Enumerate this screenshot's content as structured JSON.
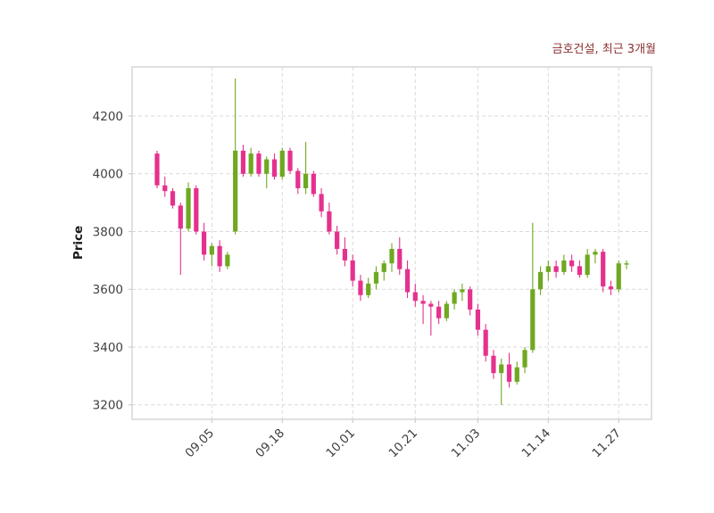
{
  "chart_data": {
    "type": "candlestick",
    "title": "금호건설, 최근 3개월",
    "ylabel": "Price",
    "xlabel": "",
    "ylim": [
      3150,
      4370
    ],
    "yticks": [
      3200,
      3400,
      3600,
      3800,
      4000,
      4200
    ],
    "xtick_labels": [
      "09.05",
      "09.18",
      "10.01",
      "10.21",
      "11.03",
      "11.14",
      "11.27"
    ],
    "xtick_indices": [
      7,
      16,
      25,
      33,
      41,
      50,
      59
    ],
    "grid": true,
    "grid_style": "dashed",
    "legend": "none",
    "colors": {
      "up": "#6fa821",
      "down": "#e5318e",
      "grid": "#d9d9d9",
      "spine": "#cccccc",
      "tick_label": "#404040",
      "title": "#8b2f2f",
      "ylabel": "#1a1a1a",
      "plot_background": "#ffffff",
      "figure_background": "#ffffff"
    },
    "candle_columns": [
      "open",
      "high",
      "low",
      "close"
    ],
    "candles": [
      [
        4070,
        4080,
        3950,
        3960
      ],
      [
        3960,
        3990,
        3920,
        3940
      ],
      [
        3940,
        3950,
        3880,
        3890
      ],
      [
        3890,
        3900,
        3650,
        3810
      ],
      [
        3810,
        3970,
        3800,
        3950
      ],
      [
        3950,
        3960,
        3790,
        3800
      ],
      [
        3800,
        3830,
        3700,
        3720
      ],
      [
        3720,
        3760,
        3680,
        3750
      ],
      [
        3750,
        3770,
        3660,
        3680
      ],
      [
        3680,
        3730,
        3670,
        3720
      ],
      [
        3800,
        4330,
        3790,
        4080
      ],
      [
        4080,
        4100,
        3990,
        4000
      ],
      [
        4000,
        4090,
        3990,
        4070
      ],
      [
        4070,
        4080,
        3990,
        4000
      ],
      [
        4000,
        4060,
        3950,
        4050
      ],
      [
        4050,
        4070,
        3980,
        3990
      ],
      [
        3990,
        4090,
        3980,
        4080
      ],
      [
        4080,
        4090,
        4000,
        4010
      ],
      [
        4010,
        4020,
        3930,
        3950
      ],
      [
        3950,
        4110,
        3930,
        4000
      ],
      [
        4000,
        4010,
        3920,
        3930
      ],
      [
        3930,
        3950,
        3850,
        3870
      ],
      [
        3870,
        3900,
        3790,
        3800
      ],
      [
        3800,
        3820,
        3720,
        3740
      ],
      [
        3740,
        3780,
        3680,
        3700
      ],
      [
        3700,
        3720,
        3610,
        3630
      ],
      [
        3630,
        3650,
        3560,
        3580
      ],
      [
        3580,
        3640,
        3570,
        3620
      ],
      [
        3620,
        3680,
        3600,
        3660
      ],
      [
        3660,
        3700,
        3630,
        3690
      ],
      [
        3690,
        3760,
        3660,
        3740
      ],
      [
        3740,
        3780,
        3650,
        3670
      ],
      [
        3670,
        3700,
        3570,
        3590
      ],
      [
        3590,
        3620,
        3540,
        3560
      ],
      [
        3560,
        3580,
        3480,
        3550
      ],
      [
        3550,
        3560,
        3440,
        3540
      ],
      [
        3540,
        3560,
        3480,
        3500
      ],
      [
        3500,
        3560,
        3490,
        3550
      ],
      [
        3550,
        3600,
        3530,
        3590
      ],
      [
        3590,
        3620,
        3560,
        3600
      ],
      [
        3600,
        3610,
        3510,
        3530
      ],
      [
        3530,
        3550,
        3440,
        3460
      ],
      [
        3460,
        3480,
        3350,
        3370
      ],
      [
        3370,
        3390,
        3290,
        3310
      ],
      [
        3310,
        3360,
        3200,
        3340
      ],
      [
        3340,
        3380,
        3260,
        3280
      ],
      [
        3280,
        3350,
        3270,
        3330
      ],
      [
        3330,
        3400,
        3310,
        3390
      ],
      [
        3390,
        3830,
        3380,
        3600
      ],
      [
        3600,
        3680,
        3580,
        3660
      ],
      [
        3660,
        3700,
        3630,
        3680
      ],
      [
        3680,
        3700,
        3640,
        3660
      ],
      [
        3660,
        3720,
        3650,
        3700
      ],
      [
        3700,
        3720,
        3660,
        3680
      ],
      [
        3680,
        3700,
        3640,
        3650
      ],
      [
        3650,
        3740,
        3640,
        3720
      ],
      [
        3720,
        3740,
        3690,
        3730
      ],
      [
        3730,
        3740,
        3590,
        3610
      ],
      [
        3610,
        3630,
        3580,
        3600
      ],
      [
        3600,
        3700,
        3590,
        3690
      ],
      [
        3690,
        3700,
        3670,
        3690
      ]
    ]
  }
}
